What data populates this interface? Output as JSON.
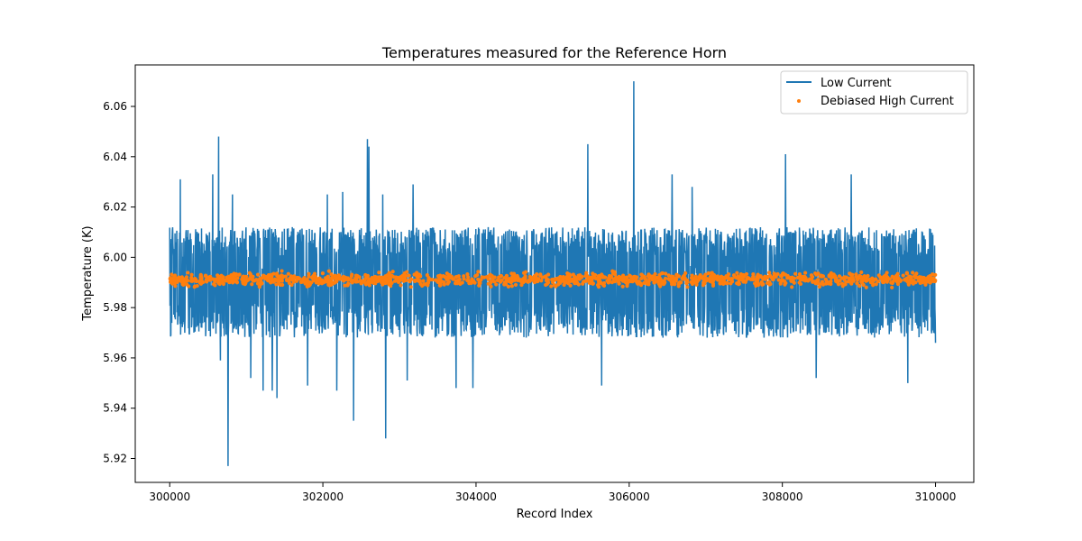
{
  "chart_data": {
    "type": "line",
    "title": "Temperatures measured for the Reference Horn",
    "xlabel": "Record Index",
    "ylabel": "Temperature (K)",
    "xlim": [
      299550,
      310500
    ],
    "ylim": [
      5.9105,
      6.0765
    ],
    "xticks": [
      300000,
      302000,
      304000,
      306000,
      308000,
      310000
    ],
    "xtick_labels": [
      "300000",
      "302000",
      "304000",
      "306000",
      "308000",
      "310000"
    ],
    "yticks": [
      5.92,
      5.94,
      5.96,
      5.98,
      6.0,
      6.02,
      6.04,
      6.06
    ],
    "ytick_labels": [
      "5.92",
      "5.94",
      "5.96",
      "5.98",
      "6.00",
      "6.02",
      "6.04",
      "6.06"
    ],
    "grid": false,
    "legend_position": "top-right",
    "series": [
      {
        "name": "Low Current",
        "kind": "line",
        "color": "#1f77b4",
        "x_start": 300000,
        "x_end": 310000,
        "center": 5.9915,
        "band_upper": 6.012,
        "band_lower": 5.968,
        "spikes": [
          {
            "x": 300080,
            "y": 6.006
          },
          {
            "x": 300140,
            "y": 6.031
          },
          {
            "x": 300560,
            "y": 6.033
          },
          {
            "x": 300640,
            "y": 6.048
          },
          {
            "x": 300660,
            "y": 5.959
          },
          {
            "x": 300760,
            "y": 5.917
          },
          {
            "x": 300820,
            "y": 6.025
          },
          {
            "x": 301060,
            "y": 5.952
          },
          {
            "x": 301220,
            "y": 5.947
          },
          {
            "x": 301340,
            "y": 5.947
          },
          {
            "x": 301400,
            "y": 5.944
          },
          {
            "x": 301600,
            "y": 6.012
          },
          {
            "x": 301800,
            "y": 5.949
          },
          {
            "x": 302060,
            "y": 6.025
          },
          {
            "x": 302180,
            "y": 5.947
          },
          {
            "x": 302260,
            "y": 6.026
          },
          {
            "x": 302400,
            "y": 5.935
          },
          {
            "x": 302580,
            "y": 6.047
          },
          {
            "x": 302600,
            "y": 6.044
          },
          {
            "x": 302780,
            "y": 6.025
          },
          {
            "x": 302820,
            "y": 5.928
          },
          {
            "x": 303100,
            "y": 5.951
          },
          {
            "x": 303180,
            "y": 6.029
          },
          {
            "x": 303740,
            "y": 5.948
          },
          {
            "x": 303960,
            "y": 5.948
          },
          {
            "x": 305460,
            "y": 6.045
          },
          {
            "x": 305640,
            "y": 6.036
          },
          {
            "x": 305640,
            "y": 5.949
          },
          {
            "x": 306060,
            "y": 6.07
          },
          {
            "x": 306560,
            "y": 6.033
          },
          {
            "x": 306820,
            "y": 6.028
          },
          {
            "x": 308040,
            "y": 6.041
          },
          {
            "x": 308440,
            "y": 5.952
          },
          {
            "x": 308900,
            "y": 6.033
          },
          {
            "x": 309640,
            "y": 5.95
          },
          {
            "x": 310000,
            "y": 5.966
          }
        ]
      },
      {
        "name": "Debiased High Current",
        "kind": "scatter",
        "color": "#ff7f0e",
        "x_start": 300000,
        "x_end": 310000,
        "center": 5.9912,
        "band_upper": 5.9935,
        "band_lower": 5.9885
      }
    ]
  }
}
